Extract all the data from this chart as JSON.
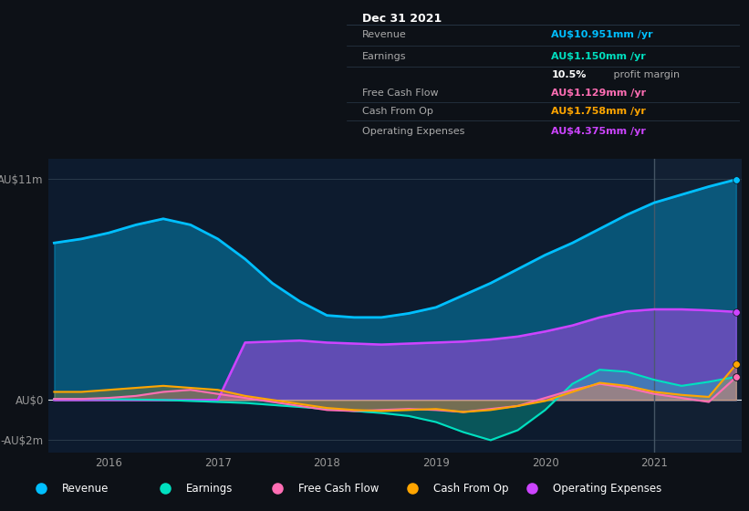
{
  "bg_color": "#0d1117",
  "chart_bg": "#0d1b2e",
  "panel_bg": "#111827",
  "colors": {
    "revenue": "#00bfff",
    "earnings": "#00e0c0",
    "free_cash_flow": "#ff6eb4",
    "cash_from_op": "#ffa500",
    "operating_expenses": "#cc44ff"
  },
  "tooltip": {
    "date": "Dec 31 2021",
    "revenue_label": "Revenue",
    "revenue_value": "AU$10.951m",
    "earnings_label": "Earnings",
    "earnings_value": "AU$1.150m",
    "profit_margin": "10.5%",
    "profit_margin_text": " profit margin",
    "fcf_label": "Free Cash Flow",
    "fcf_value": "AU$1.129m",
    "cashop_label": "Cash From Op",
    "cashop_value": "AU$1.758m",
    "opex_label": "Operating Expenses",
    "opex_value": "AU$4.375m"
  },
  "x": [
    2015.5,
    2015.75,
    2016.0,
    2016.25,
    2016.5,
    2016.75,
    2017.0,
    2017.25,
    2017.5,
    2017.75,
    2018.0,
    2018.25,
    2018.5,
    2018.75,
    2019.0,
    2019.25,
    2019.5,
    2019.75,
    2020.0,
    2020.25,
    2020.5,
    2020.75,
    2021.0,
    2021.25,
    2021.5,
    2021.75
  ],
  "revenue": [
    7.8,
    8.0,
    8.3,
    8.7,
    9.0,
    8.7,
    8.0,
    7.0,
    5.8,
    4.9,
    4.2,
    4.1,
    4.1,
    4.3,
    4.6,
    5.2,
    5.8,
    6.5,
    7.2,
    7.8,
    8.5,
    9.2,
    9.8,
    10.2,
    10.6,
    10.951
  ],
  "op_exp": [
    0.0,
    0.0,
    0.0,
    0.0,
    0.0,
    0.0,
    0.0,
    2.85,
    2.9,
    2.95,
    2.85,
    2.8,
    2.75,
    2.8,
    2.85,
    2.9,
    3.0,
    3.15,
    3.4,
    3.7,
    4.1,
    4.4,
    4.5,
    4.5,
    4.45,
    4.375
  ],
  "earnings": [
    0.05,
    0.05,
    0.04,
    0.02,
    0.0,
    -0.05,
    -0.1,
    -0.15,
    -0.25,
    -0.35,
    -0.45,
    -0.55,
    -0.65,
    -0.8,
    -1.1,
    -1.6,
    -2.0,
    -1.5,
    -0.5,
    0.8,
    1.5,
    1.4,
    1.0,
    0.7,
    0.9,
    1.15
  ],
  "fcf": [
    0.05,
    0.05,
    0.1,
    0.2,
    0.4,
    0.5,
    0.3,
    0.1,
    -0.1,
    -0.3,
    -0.5,
    -0.55,
    -0.5,
    -0.45,
    -0.5,
    -0.6,
    -0.45,
    -0.3,
    0.1,
    0.5,
    0.8,
    0.6,
    0.3,
    0.1,
    -0.1,
    1.129
  ],
  "cash_op": [
    0.4,
    0.4,
    0.5,
    0.6,
    0.7,
    0.6,
    0.5,
    0.2,
    0.0,
    -0.2,
    -0.4,
    -0.5,
    -0.55,
    -0.5,
    -0.45,
    -0.6,
    -0.5,
    -0.3,
    -0.05,
    0.4,
    0.85,
    0.7,
    0.4,
    0.25,
    0.15,
    1.758
  ],
  "ylim": [
    -2.6,
    12.0
  ],
  "ytick_positions": [
    -2,
    0,
    11
  ],
  "ytick_labels": [
    "-AU$2m",
    "AU$0",
    "AU$11m"
  ],
  "xticks": [
    2016,
    2017,
    2018,
    2019,
    2020,
    2021
  ],
  "vline_x": 2021.0,
  "legend_items": [
    "Revenue",
    "Earnings",
    "Free Cash Flow",
    "Cash From Op",
    "Operating Expenses"
  ],
  "legend_colors": [
    "#00bfff",
    "#00e0c0",
    "#ff6eb4",
    "#ffa500",
    "#cc44ff"
  ]
}
